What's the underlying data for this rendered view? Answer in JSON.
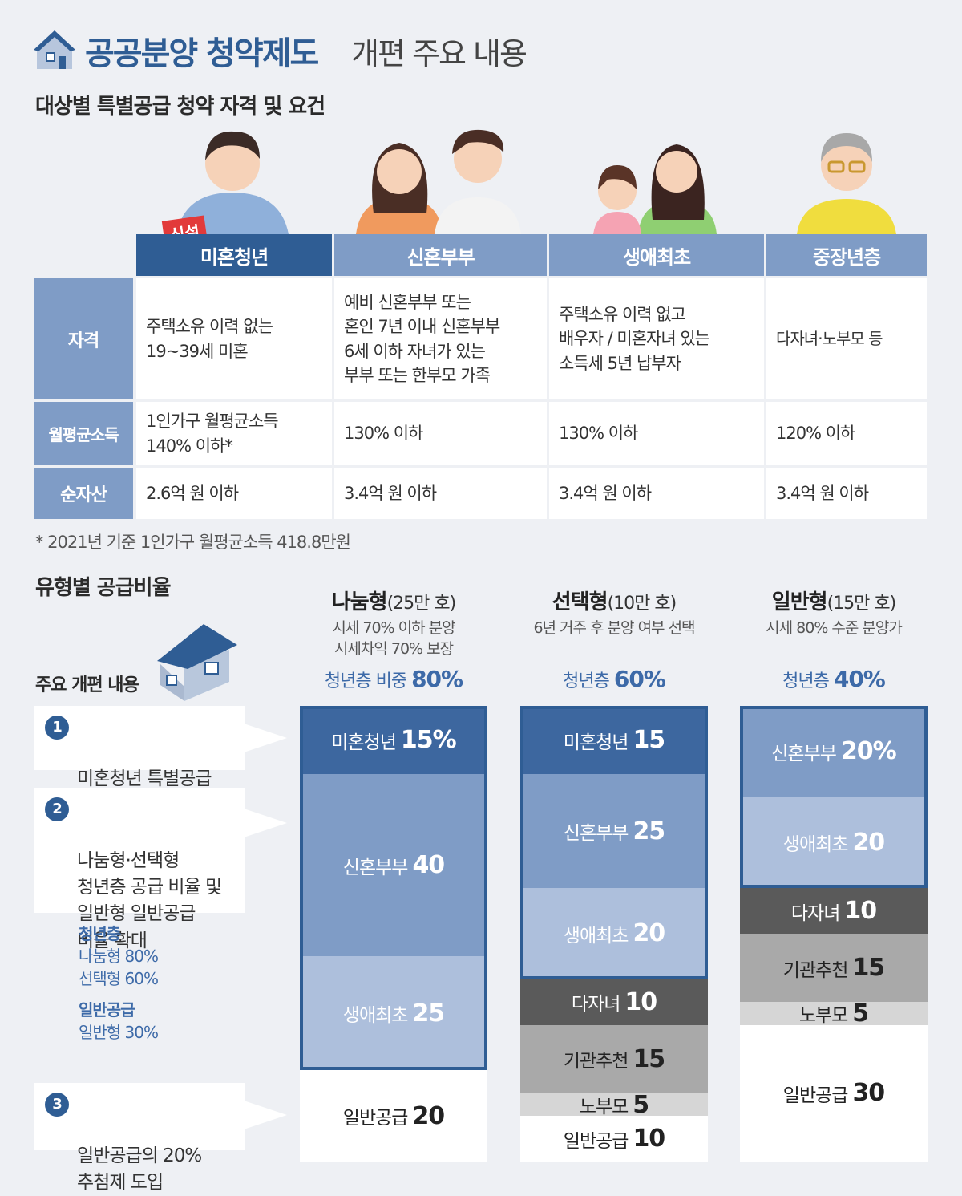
{
  "header": {
    "title_bold": "공공분양 청약제도",
    "title_rest": "개편 주요 내용"
  },
  "section1_title": "대상별 특별공급 청약 자격 및 요건",
  "new_badge": "신설",
  "table": {
    "columns": [
      "미혼청년",
      "신혼부부",
      "생애최초",
      "중장년층"
    ],
    "rows": [
      {
        "label": "자격",
        "cells": [
          "주택소유 이력 없는\n19~39세 미혼",
          "예비 신혼부부 또는\n혼인 7년 이내 신혼부부\n6세 이하 자녀가 있는\n부부 또는 한부모 가족",
          "주택소유 이력 없고\n배우자 / 미혼자녀 있는\n소득세 5년 납부자",
          "다자녀·노부모 등"
        ]
      },
      {
        "label": "월평균소득",
        "cells": [
          "1인가구 월평균소득\n140% 이하*",
          "130% 이하",
          "130% 이하",
          "120% 이하"
        ]
      },
      {
        "label": "순자산",
        "cells": [
          "2.6억 원 이하",
          "3.4억 원 이하",
          "3.4억 원 이하",
          "3.4억 원 이하"
        ]
      }
    ]
  },
  "footnote": "* 2021년 기준 1인가구 월평균소득 418.8만원",
  "section2_title": "유형별 공급비율",
  "reform_title": "주요 개편 내용",
  "notes": [
    {
      "num": "1",
      "text": "미혼청년 특별공급\n신설"
    },
    {
      "num": "2",
      "text": "나눔형·선택형\n청년층 공급 비율 및\n일반형 일반공급\n비율 확대"
    },
    {
      "num": "3",
      "text": "일반공급의 20%\n추첨제 도입"
    }
  ],
  "summary": {
    "youth_head": "청년층",
    "youth_1": "나눔형 80%",
    "youth_2": "선택형 60%",
    "general_head": "일반공급",
    "general_1": "일반형 30%"
  },
  "colors": {
    "brand": "#2f5d94",
    "dark": "#3d679f",
    "mid": "#7f9cc6",
    "light": "#adbfdc",
    "gray_dark": "#5a5a5a",
    "gray_mid": "#a9a9a9",
    "gray_light": "#d6d6d6",
    "white": "#ffffff"
  },
  "chart_data": {
    "type": "bar",
    "stacked": true,
    "unit": "%",
    "categories": [
      {
        "name": "나눔형",
        "count": "(25만 호)",
        "desc": "시세 70% 이하 분양\n시세차익 70% 보장",
        "youth_label": "청년층 비중",
        "youth_value": "80%"
      },
      {
        "name": "선택형",
        "count": "(10만 호)",
        "desc": "6년 거주 후 분양 여부 선택",
        "youth_label": "청년층",
        "youth_value": "60%"
      },
      {
        "name": "일반형",
        "count": "(15만 호)",
        "desc": "시세 80% 수준 분양가",
        "youth_label": "청년층",
        "youth_value": "40%"
      }
    ],
    "series": [
      {
        "label": "미혼청년",
        "values": [
          15,
          15,
          0
        ],
        "display": [
          "15%",
          "15",
          ""
        ],
        "color": "dark"
      },
      {
        "label": "신혼부부",
        "values": [
          40,
          25,
          20
        ],
        "display": [
          "40",
          "25",
          "20%"
        ],
        "color": "mid"
      },
      {
        "label": "생애최초",
        "values": [
          25,
          20,
          20
        ],
        "display": [
          "25",
          "20",
          "20"
        ],
        "color": "light"
      },
      {
        "label": "다자녀",
        "values": [
          0,
          10,
          10
        ],
        "display": [
          "",
          "10",
          "10"
        ],
        "color": "gray_dark"
      },
      {
        "label": "기관추천",
        "values": [
          0,
          15,
          15
        ],
        "display": [
          "",
          "15",
          "15"
        ],
        "color": "gray_mid"
      },
      {
        "label": "노부모",
        "values": [
          0,
          5,
          5
        ],
        "display": [
          "",
          "5",
          "5"
        ],
        "color": "gray_light"
      },
      {
        "label": "일반공급",
        "values": [
          20,
          10,
          30
        ],
        "display": [
          "20",
          "10",
          "30"
        ],
        "color": "white"
      }
    ]
  }
}
